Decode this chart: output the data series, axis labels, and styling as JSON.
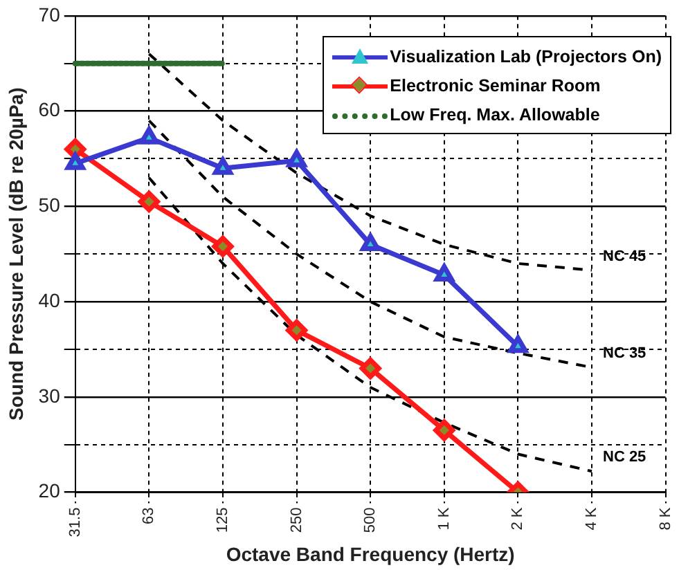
{
  "chart_data": {
    "type": "line",
    "xlabel": "Octave Band Frequency (Hertz)",
    "ylabel": "Sound Pressure Level (dB re 20µPa)",
    "categories": [
      "31.5",
      "63",
      "125",
      "250",
      "500",
      "1 K",
      "2 K",
      "4 K",
      "8 K"
    ],
    "ylim": [
      20,
      70
    ],
    "yticks": [
      20,
      {
        "value": 25,
        "label": null
      },
      30,
      {
        "value": 35,
        "label": null
      },
      40,
      {
        "value": 45,
        "label": null
      },
      50,
      {
        "value": 55,
        "label": null
      },
      60,
      {
        "value": 65,
        "label": null
      },
      70
    ],
    "grid": true,
    "legend": "top right",
    "series": [
      {
        "name": "Visualization Lab (Projectors On)",
        "color": "#3a3ad0",
        "marker": "triangle",
        "line_style": "solid",
        "values": [
          54.5,
          57.2,
          54,
          54.8,
          46,
          42.8,
          35.3,
          null,
          null
        ]
      },
      {
        "name": "Electronic Seminar Room",
        "color": "#ff1a1a",
        "marker": "diamond",
        "line_style": "solid",
        "values": [
          56,
          50.5,
          45.8,
          37,
          33,
          26.5,
          20,
          null,
          null
        ]
      },
      {
        "name": "Low Freq. Max. Allowable",
        "color": "#2e6b2e",
        "marker": "none",
        "line_style": "dotted",
        "values": [
          65,
          65,
          65,
          null,
          null,
          null,
          null,
          null,
          null
        ]
      },
      {
        "color": "#000000",
        "marker": "none",
        "line_style": "dashed",
        "values": [
          null,
          66,
          59,
          53.5,
          49,
          46,
          44,
          43.3,
          null
        ]
      },
      {
        "color": "#000000",
        "marker": "none",
        "line_style": "dashed",
        "values": [
          null,
          59,
          51,
          45,
          40,
          36.3,
          34.6,
          33.1,
          null
        ]
      },
      {
        "color": "#000000",
        "marker": "none",
        "line_style": "dashed",
        "values": [
          null,
          53,
          44,
          36.5,
          31,
          27.3,
          24,
          22.2,
          null
        ]
      }
    ],
    "annotations": [
      {
        "text": "NC 45",
        "x": "4 K",
        "y": 43.3
      },
      {
        "text": "NC 35",
        "x": "4 K",
        "y": 33.1
      },
      {
        "text": "NC 25",
        "x": "4 K",
        "y": 22.2
      }
    ]
  }
}
